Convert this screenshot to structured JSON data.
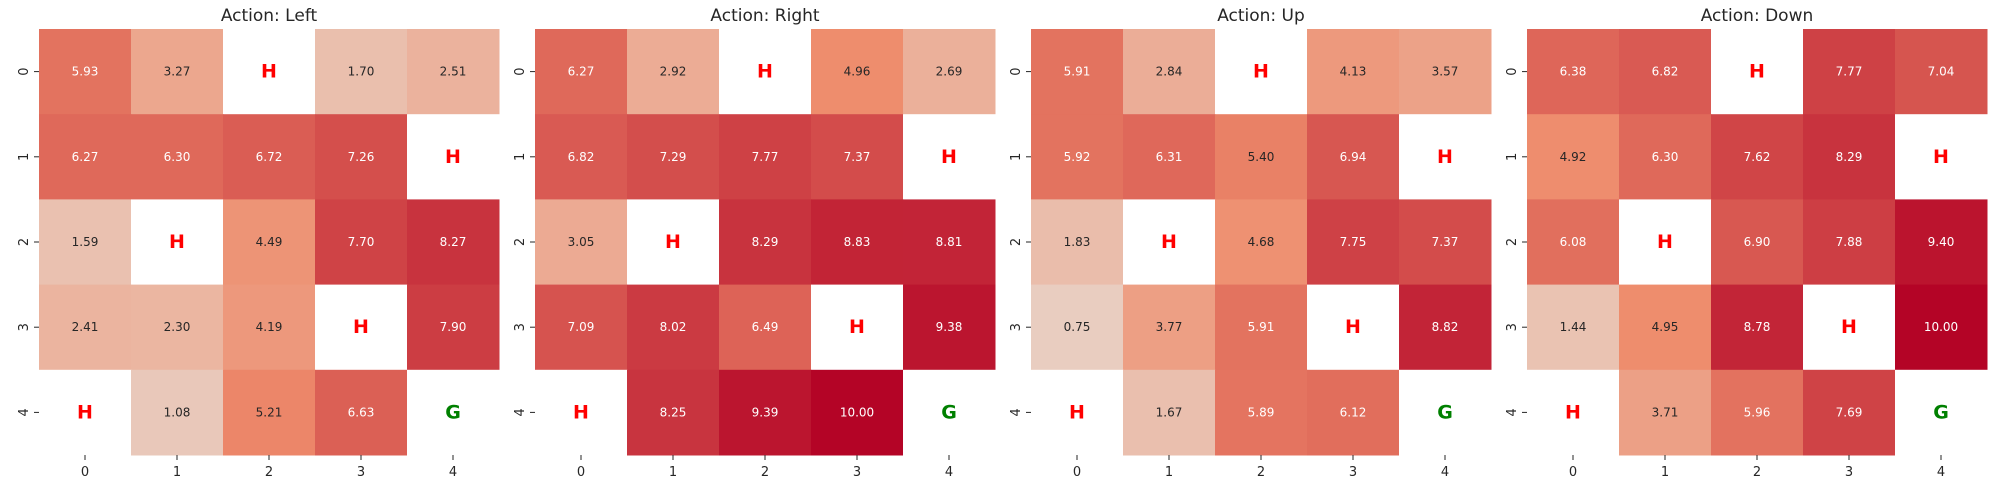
{
  "colors": {
    "cmap_low": "#e8d9cf",
    "cmap_mid": "#ee8c6c",
    "cmap_high": "#b40426",
    "hole_text": "#ff0000",
    "goal_text": "#008000",
    "text_dark": "#262626",
    "text_light": "#ffffff"
  },
  "chart_data": [
    {
      "type": "heatmap",
      "title": "Action: Left",
      "x_ticks": [
        "0",
        "1",
        "2",
        "3",
        "4"
      ],
      "y_ticks": [
        "0",
        "1",
        "2",
        "3",
        "4"
      ],
      "vmin": 0,
      "vmax": 10,
      "cells": [
        [
          5.93,
          3.27,
          "H",
          1.7,
          2.51
        ],
        [
          6.27,
          6.3,
          6.72,
          7.26,
          "H"
        ],
        [
          1.59,
          "H",
          4.49,
          7.7,
          8.27
        ],
        [
          2.41,
          2.3,
          4.19,
          "H",
          7.9
        ],
        [
          "H",
          1.08,
          5.21,
          6.63,
          "G"
        ]
      ]
    },
    {
      "type": "heatmap",
      "title": "Action: Right",
      "x_ticks": [
        "0",
        "1",
        "2",
        "3",
        "4"
      ],
      "y_ticks": [
        "0",
        "1",
        "2",
        "3",
        "4"
      ],
      "vmin": 0,
      "vmax": 10,
      "cells": [
        [
          6.27,
          2.92,
          "H",
          4.96,
          2.69
        ],
        [
          6.82,
          7.29,
          7.77,
          7.37,
          "H"
        ],
        [
          3.05,
          "H",
          8.29,
          8.83,
          8.81
        ],
        [
          7.09,
          8.02,
          6.49,
          "H",
          9.38
        ],
        [
          "H",
          8.25,
          9.39,
          10.0,
          "G"
        ]
      ]
    },
    {
      "type": "heatmap",
      "title": "Action: Up",
      "x_ticks": [
        "0",
        "1",
        "2",
        "3",
        "4"
      ],
      "y_ticks": [
        "0",
        "1",
        "2",
        "3",
        "4"
      ],
      "vmin": 0,
      "vmax": 10,
      "cells": [
        [
          5.91,
          2.84,
          "H",
          4.13,
          3.57
        ],
        [
          5.92,
          6.31,
          5.4,
          6.94,
          "H"
        ],
        [
          1.83,
          "H",
          4.68,
          7.75,
          7.37
        ],
        [
          0.75,
          3.77,
          5.91,
          "H",
          8.82
        ],
        [
          "H",
          1.67,
          5.89,
          6.12,
          "G"
        ]
      ]
    },
    {
      "type": "heatmap",
      "title": "Action: Down",
      "x_ticks": [
        "0",
        "1",
        "2",
        "3",
        "4"
      ],
      "y_ticks": [
        "0",
        "1",
        "2",
        "3",
        "4"
      ],
      "vmin": 0,
      "vmax": 10,
      "cells": [
        [
          6.38,
          6.82,
          "H",
          7.77,
          7.04
        ],
        [
          4.92,
          6.3,
          7.62,
          8.29,
          "H"
        ],
        [
          6.08,
          "H",
          6.9,
          7.88,
          9.4
        ],
        [
          1.44,
          4.95,
          8.78,
          "H",
          10.0
        ],
        [
          "H",
          3.71,
          5.96,
          7.69,
          "G"
        ]
      ]
    }
  ]
}
